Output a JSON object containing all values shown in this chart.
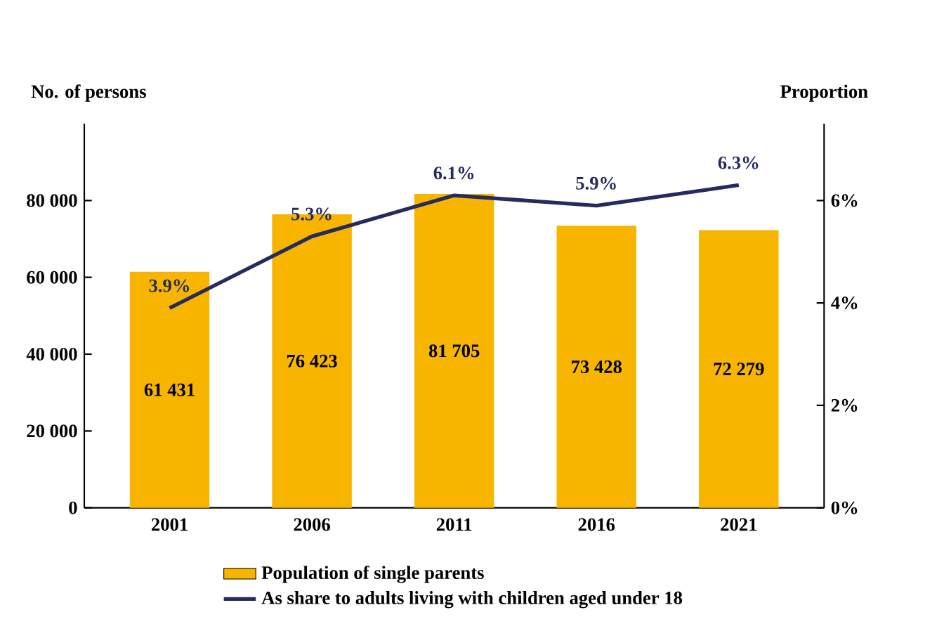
{
  "chart_data": {
    "type": "bar",
    "ylabel": "No. of persons",
    "y2label": "Proportion",
    "categories": [
      "2001",
      "2006",
      "2011",
      "2016",
      "2021"
    ],
    "series": [
      {
        "name": "Population of single parents",
        "color": "#f7b500",
        "values": [
          61431,
          76423,
          81705,
          73428,
          72279
        ],
        "value_labels": [
          "61 431",
          "76 423",
          "81 705",
          "73 428",
          "72 279"
        ]
      },
      {
        "name": "As share to adults living with children aged under 18",
        "type": "line",
        "axis": "y2",
        "color": "#252a5f",
        "values": [
          3.9,
          5.3,
          6.1,
          5.9,
          6.3
        ],
        "value_labels": [
          "3.9%",
          "5.3%",
          "6.1%",
          "5.9%",
          "6.3%"
        ]
      }
    ],
    "ylim": [
      0,
      100000
    ],
    "yticks": [
      0,
      {
        "value": 20000,
        "label": "20 000"
      },
      {
        "value": 40000,
        "label": "40 000"
      },
      {
        "value": 60000,
        "label": "60 000"
      },
      {
        "value": 80000,
        "label": "80 000"
      }
    ],
    "y2lim": [
      0,
      7.5
    ],
    "y2ticks": [
      {
        "value": 0,
        "label": "0%"
      },
      {
        "value": 2,
        "label": "2%"
      },
      {
        "value": 4,
        "label": "4%"
      },
      {
        "value": 6,
        "label": "6%"
      }
    ],
    "grid": false,
    "legend": "bottom",
    "marker": "none",
    "line_style": "solid"
  }
}
